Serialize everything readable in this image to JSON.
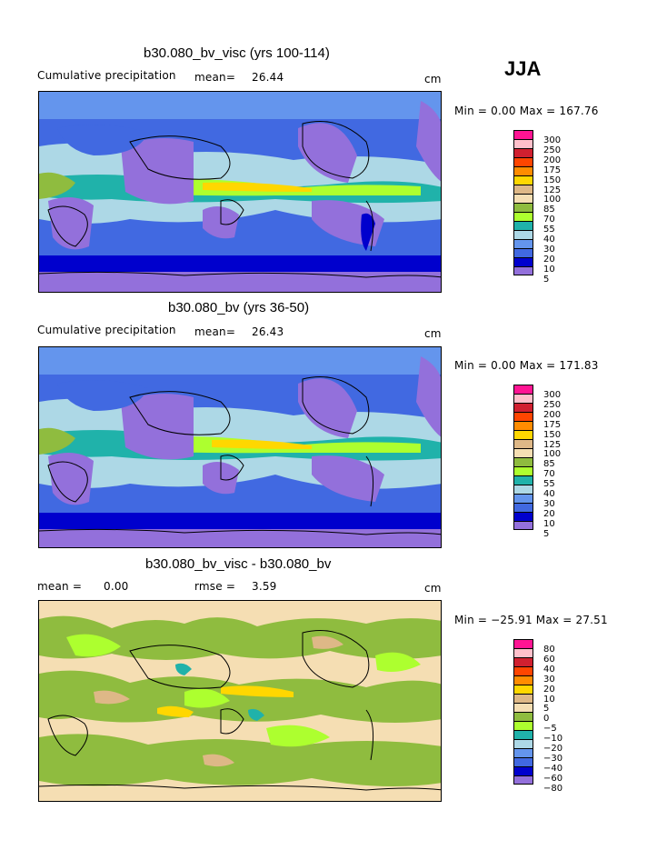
{
  "season_label": "JJA",
  "units_label": "cm",
  "colors": {
    "precip_levels": [
      "#ff1493",
      "#ffc0cb",
      "#d02030",
      "#ff4500",
      "#ff8c00",
      "#ffd700",
      "#deb887",
      "#f5deb3",
      "#8fbc3f",
      "#adff2f",
      "#20b2aa",
      "#add8e6",
      "#6495ed",
      "#4169e1",
      "#0000cd",
      "#9370db"
    ],
    "diff_levels": [
      "#ff1493",
      "#ffc0cb",
      "#d02030",
      "#ff4500",
      "#ff8c00",
      "#ffd700",
      "#deb887",
      "#f5deb3",
      "#8fbc3f",
      "#adff2f",
      "#20b2aa",
      "#add8e6",
      "#6495ed",
      "#4169e1",
      "#0000cd",
      "#9370db"
    ]
  },
  "panels": [
    {
      "title": "b30.080_bv_visc (yrs 100-114)",
      "subtitle": "Cumulative precipitation",
      "mean_label": "mean=",
      "mean_value": "26.44",
      "units": "cm",
      "minmax_label": "Min =   0.00 Max = 167.76",
      "min_value": 0.0,
      "max_value": 167.76,
      "colorbar_labels": [
        "300",
        "250",
        "200",
        "175",
        "150",
        "125",
        "100",
        "85",
        "70",
        "55",
        "40",
        "30",
        "20",
        "10",
        "5"
      ]
    },
    {
      "title": "b30.080_bv (yrs 36-50)",
      "subtitle": "Cumulative precipitation",
      "mean_label": "mean=",
      "mean_value": "26.43",
      "units": "cm",
      "minmax_label": "Min =   0.00 Max = 171.83",
      "min_value": 0.0,
      "max_value": 171.83,
      "colorbar_labels": [
        "300",
        "250",
        "200",
        "175",
        "150",
        "125",
        "100",
        "85",
        "70",
        "55",
        "40",
        "30",
        "20",
        "10",
        "5"
      ]
    },
    {
      "title": "b30.080_bv_visc - b30.080_bv",
      "mean_label": "mean =",
      "mean_value": "0.00",
      "rmse_label": "rmse =",
      "rmse_value": "3.59",
      "units": "cm",
      "minmax_label": "Min = −25.91 Max =  27.51",
      "min_value": -25.91,
      "max_value": 27.51,
      "colorbar_labels": [
        "80",
        "60",
        "40",
        "30",
        "20",
        "10",
        "5",
        "0",
        "−5",
        "−10",
        "−20",
        "−30",
        "−40",
        "−60",
        "−80"
      ]
    }
  ],
  "chart_data": [
    {
      "type": "heatmap",
      "title": "b30.080_bv_visc (yrs 100-114)",
      "subtitle": "Cumulative precipitation",
      "mean": 26.44,
      "min": 0.0,
      "max": 167.76,
      "units": "cm",
      "contour_levels": [
        5,
        10,
        20,
        30,
        40,
        55,
        70,
        85,
        100,
        125,
        150,
        175,
        200,
        250,
        300
      ]
    },
    {
      "type": "heatmap",
      "title": "b30.080_bv (yrs 36-50)",
      "subtitle": "Cumulative precipitation",
      "mean": 26.43,
      "min": 0.0,
      "max": 171.83,
      "units": "cm",
      "contour_levels": [
        5,
        10,
        20,
        30,
        40,
        55,
        70,
        85,
        100,
        125,
        150,
        175,
        200,
        250,
        300
      ]
    },
    {
      "type": "heatmap",
      "title": "b30.080_bv_visc - b30.080_bv",
      "mean": 0.0,
      "rmse": 3.59,
      "min": -25.91,
      "max": 27.51,
      "units": "cm",
      "contour_levels": [
        -80,
        -60,
        -40,
        -30,
        -20,
        -10,
        -5,
        0,
        5,
        10,
        20,
        30,
        40,
        60,
        80
      ]
    }
  ]
}
